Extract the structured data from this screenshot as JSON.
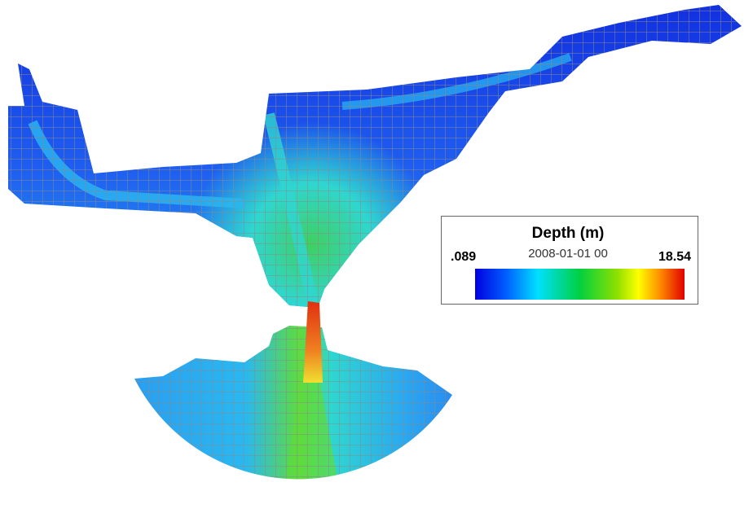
{
  "legend": {
    "title": "Depth (m)",
    "min_label": ".089",
    "timestamp": "2008-01-01 00",
    "max_label": "18.54"
  }
}
